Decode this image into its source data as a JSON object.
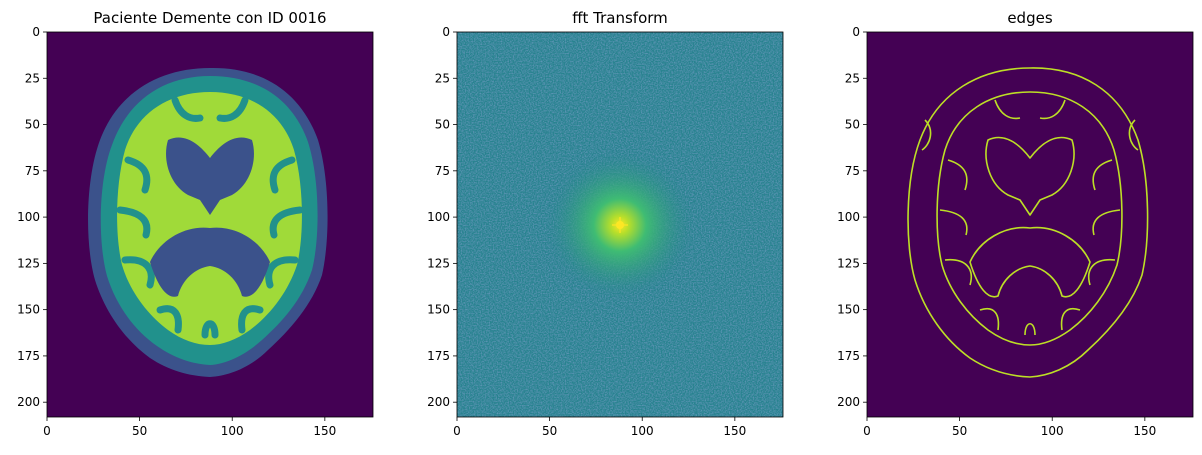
{
  "chart_data": [
    {
      "type": "heatmap",
      "title": "Paciente Demente con ID 0016",
      "image": "brain-mri-segmentation",
      "colormap": "viridis",
      "xlim": [
        0,
        176
      ],
      "ylim": [
        208,
        0
      ],
      "xticks": [
        0,
        50,
        100,
        150
      ],
      "yticks": [
        0,
        25,
        50,
        75,
        100,
        125,
        150,
        175,
        200
      ]
    },
    {
      "type": "heatmap",
      "title": "fft Transform",
      "image": "fft-spectrum-noise",
      "colormap": "viridis",
      "xlim": [
        0,
        176
      ],
      "ylim": [
        208,
        0
      ],
      "xticks": [
        0,
        50,
        100,
        150
      ],
      "yticks": [
        0,
        25,
        50,
        75,
        100,
        125,
        150,
        175,
        200
      ]
    },
    {
      "type": "heatmap",
      "title": "edges",
      "image": "edge-map",
      "colormap": "viridis",
      "xlim": [
        0,
        176
      ],
      "ylim": [
        208,
        0
      ],
      "xticks": [
        0,
        50,
        100,
        150
      ],
      "yticks": [
        0,
        25,
        50,
        75,
        100,
        125,
        150,
        175,
        200
      ]
    }
  ],
  "colors": {
    "background": "#440154",
    "csf": "#3b528b",
    "gray_matter": "#21918c",
    "white_matter": "#a0da39",
    "fft_base": "#26828e",
    "fft_peak": "#fde725",
    "edge": "#bddf26"
  }
}
